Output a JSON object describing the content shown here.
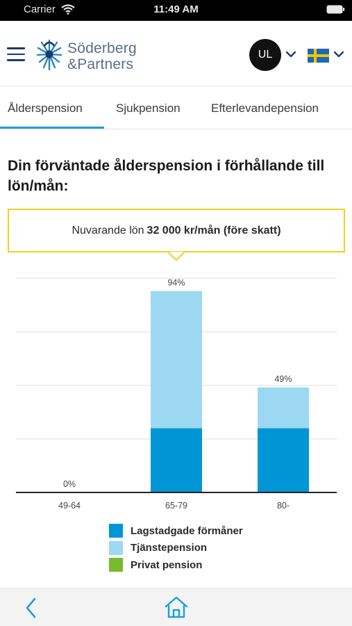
{
  "status_bar": {
    "carrier": "Carrier",
    "time": "11:49 AM",
    "wifi_icon": "wifi-icon",
    "battery_icon": "battery-icon"
  },
  "header": {
    "menu_icon": "hamburger-menu-icon",
    "logo_line1": "Söderberg",
    "logo_line2": "&Partners",
    "avatar_initials": "UL",
    "language_flag": "swedish-flag-icon",
    "brand_color": "#1a3a6b"
  },
  "tabs": [
    {
      "label": "Ålderspension",
      "active": true
    },
    {
      "label": "Sjukpension",
      "active": false
    },
    {
      "label": "Efterlevandepension",
      "active": false
    }
  ],
  "title": "Din förväntade ålderspension i förhållande till lön/mån:",
  "callout": {
    "prefix": "Nuvarande lön",
    "value": "32 000 kr/mån (före skatt)",
    "border_color": "#f3cf1f"
  },
  "chart_data": {
    "type": "bar",
    "stacked": true,
    "categories": [
      "49-64",
      "65-79",
      "80-"
    ],
    "totals_labels": [
      "0%",
      "94%",
      "49%"
    ],
    "series": [
      {
        "name": "Lagstadgade förmåner",
        "values": [
          0,
          30,
          30
        ],
        "color": "#0096d6"
      },
      {
        "name": "Tjänstepension",
        "values": [
          0,
          64,
          19
        ],
        "color": "#9dd8f2"
      },
      {
        "name": "Privat pension",
        "values": [
          0,
          0,
          0
        ],
        "color": "#77bb2a"
      }
    ],
    "ylim": [
      0,
      100
    ],
    "grid": true,
    "legend_position": "bottom"
  },
  "bottom_nav": {
    "back_icon": "chevron-left-icon",
    "home_icon": "home-icon",
    "accent": "#1a9fd9"
  }
}
